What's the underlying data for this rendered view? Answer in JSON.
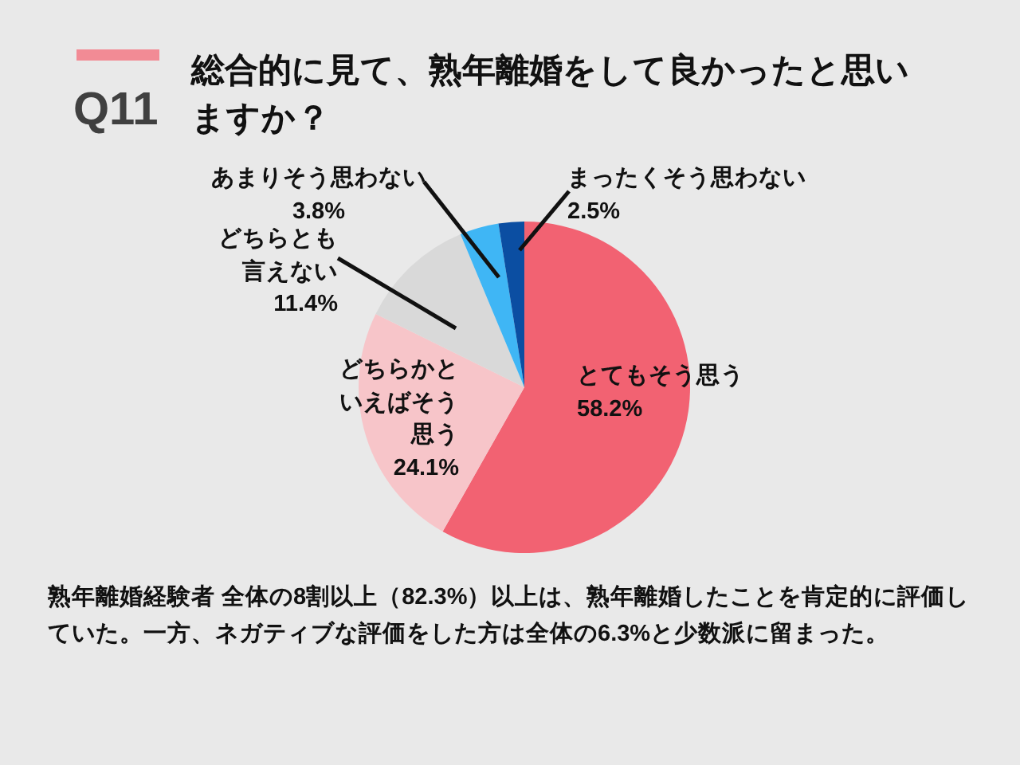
{
  "chart_data": {
    "type": "pie",
    "title": "総合的に見て、熟年離婚をして良かったと思いますか？",
    "subtitle": "Q11",
    "categories": [
      "とてもそう思う",
      "どちらかといえばそう思う",
      "どちらとも言えない",
      "あまりそう思わない",
      "まったくそう思わない"
    ],
    "values": [
      58.2,
      24.1,
      11.4,
      3.8,
      2.5
    ],
    "value_labels": [
      "58.2%",
      "24.1%",
      "11.4%",
      "3.8%",
      "2.5%"
    ],
    "colors": [
      "#f26272",
      "#f7c5c9",
      "#d9d9d9",
      "#3fb6f5",
      "#0b4ea2"
    ],
    "annotations": [
      "熟年離婚経験者 全体の8割以上（82.3%）以上は、熟年離婚したことを肯定的に評価していた。一方、ネガティブな評価をした方は全体の6.3%と少数派に留まった。"
    ]
  }
}
